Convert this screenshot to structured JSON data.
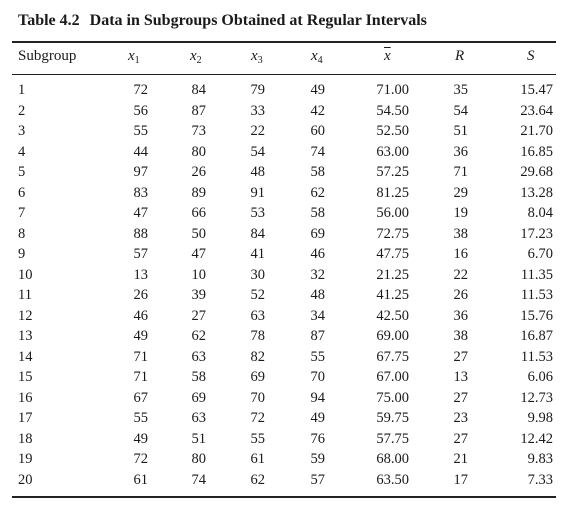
{
  "caption": {
    "label": "Table 4.2",
    "title": "Data in Subgroups Obtained at Regular Intervals"
  },
  "headers": {
    "subgroup": "Subgroup",
    "x": "x",
    "sub1": "1",
    "sub2": "2",
    "sub3": "3",
    "sub4": "4",
    "xbar": "x",
    "r": "R",
    "s": "S"
  },
  "rows": [
    [
      "1",
      "72",
      "84",
      "79",
      "49",
      "71.00",
      "35",
      "15.47"
    ],
    [
      "2",
      "56",
      "87",
      "33",
      "42",
      "54.50",
      "54",
      "23.64"
    ],
    [
      "3",
      "55",
      "73",
      "22",
      "60",
      "52.50",
      "51",
      "21.70"
    ],
    [
      "4",
      "44",
      "80",
      "54",
      "74",
      "63.00",
      "36",
      "16.85"
    ],
    [
      "5",
      "97",
      "26",
      "48",
      "58",
      "57.25",
      "71",
      "29.68"
    ],
    [
      "6",
      "83",
      "89",
      "91",
      "62",
      "81.25",
      "29",
      "13.28"
    ],
    [
      "7",
      "47",
      "66",
      "53",
      "58",
      "56.00",
      "19",
      "8.04"
    ],
    [
      "8",
      "88",
      "50",
      "84",
      "69",
      "72.75",
      "38",
      "17.23"
    ],
    [
      "9",
      "57",
      "47",
      "41",
      "46",
      "47.75",
      "16",
      "6.70"
    ],
    [
      "10",
      "13",
      "10",
      "30",
      "32",
      "21.25",
      "22",
      "11.35"
    ],
    [
      "11",
      "26",
      "39",
      "52",
      "48",
      "41.25",
      "26",
      "11.53"
    ],
    [
      "12",
      "46",
      "27",
      "63",
      "34",
      "42.50",
      "36",
      "15.76"
    ],
    [
      "13",
      "49",
      "62",
      "78",
      "87",
      "69.00",
      "38",
      "16.87"
    ],
    [
      "14",
      "71",
      "63",
      "82",
      "55",
      "67.75",
      "27",
      "11.53"
    ],
    [
      "15",
      "71",
      "58",
      "69",
      "70",
      "67.00",
      "13",
      "6.06"
    ],
    [
      "16",
      "67",
      "69",
      "70",
      "94",
      "75.00",
      "27",
      "12.73"
    ],
    [
      "17",
      "55",
      "63",
      "72",
      "49",
      "59.75",
      "23",
      "9.98"
    ],
    [
      "18",
      "49",
      "51",
      "55",
      "76",
      "57.75",
      "27",
      "12.42"
    ],
    [
      "19",
      "72",
      "80",
      "61",
      "59",
      "68.00",
      "21",
      "9.83"
    ],
    [
      "20",
      "61",
      "74",
      "62",
      "57",
      "63.50",
      "17",
      "7.33"
    ]
  ]
}
